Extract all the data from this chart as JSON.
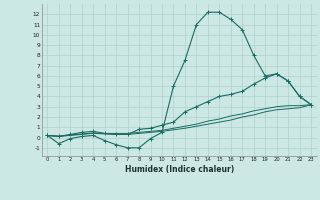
{
  "background_color": "#cce8e4",
  "grid_color": "#b0d0cc",
  "line_color": "#1a6b60",
  "xlim": [
    -0.5,
    23.5
  ],
  "ylim": [
    -1.8,
    13.0
  ],
  "xlabel": "Humidex (Indice chaleur)",
  "xticks": [
    0,
    1,
    2,
    3,
    4,
    5,
    6,
    7,
    8,
    9,
    10,
    11,
    12,
    13,
    14,
    15,
    16,
    17,
    18,
    19,
    20,
    21,
    22,
    23
  ],
  "yticks": [
    -1,
    0,
    1,
    2,
    3,
    4,
    5,
    6,
    7,
    8,
    9,
    10,
    11,
    12
  ],
  "line1_x": [
    0,
    1,
    2,
    3,
    4,
    5,
    6,
    7,
    8,
    9,
    10,
    11,
    12,
    13,
    14,
    15,
    16,
    17,
    18,
    19,
    20,
    21,
    22,
    23
  ],
  "line1_y": [
    0.2,
    -0.6,
    -0.1,
    0.1,
    0.2,
    -0.3,
    -0.7,
    -1.0,
    -1.0,
    -0.1,
    0.5,
    5.0,
    7.5,
    11.0,
    12.2,
    12.2,
    11.5,
    10.5,
    8.0,
    6.0,
    6.2,
    5.5,
    4.0,
    3.2
  ],
  "line2_x": [
    0,
    1,
    2,
    3,
    4,
    5,
    6,
    7,
    8,
    9,
    10,
    11,
    12,
    13,
    14,
    15,
    16,
    17,
    18,
    19,
    20,
    21,
    22,
    23
  ],
  "line2_y": [
    0.2,
    0.1,
    0.3,
    0.5,
    0.6,
    0.4,
    0.3,
    0.3,
    0.8,
    0.9,
    1.2,
    1.5,
    2.5,
    3.0,
    3.5,
    4.0,
    4.2,
    4.5,
    5.2,
    5.8,
    6.2,
    5.5,
    4.0,
    3.2
  ],
  "line3_x": [
    0,
    1,
    2,
    3,
    4,
    5,
    6,
    7,
    8,
    9,
    10,
    11,
    12,
    13,
    14,
    15,
    16,
    17,
    18,
    19,
    20,
    21,
    22,
    23
  ],
  "line3_y": [
    0.2,
    0.15,
    0.25,
    0.35,
    0.45,
    0.4,
    0.4,
    0.4,
    0.5,
    0.6,
    0.7,
    0.9,
    1.1,
    1.3,
    1.6,
    1.8,
    2.1,
    2.3,
    2.6,
    2.8,
    3.0,
    3.1,
    3.1,
    3.2
  ],
  "line4_x": [
    0,
    1,
    2,
    3,
    4,
    5,
    6,
    7,
    8,
    9,
    10,
    11,
    12,
    13,
    14,
    15,
    16,
    17,
    18,
    19,
    20,
    21,
    22,
    23
  ],
  "line4_y": [
    0.2,
    0.1,
    0.2,
    0.3,
    0.4,
    0.35,
    0.3,
    0.3,
    0.4,
    0.5,
    0.6,
    0.75,
    0.9,
    1.1,
    1.3,
    1.5,
    1.7,
    2.0,
    2.2,
    2.5,
    2.7,
    2.8,
    2.9,
    3.2
  ]
}
